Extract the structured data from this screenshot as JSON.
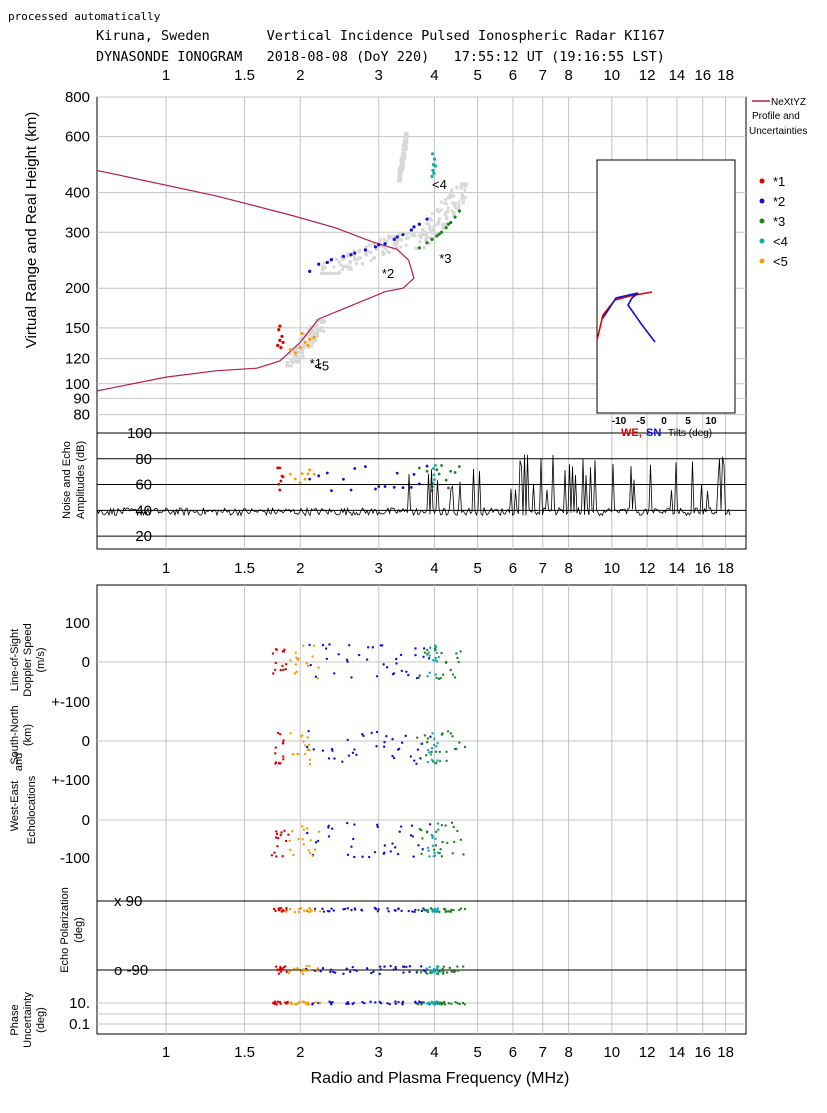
{
  "header": {
    "processed": "processed automatically",
    "line1": "Kiruna, Sweden       Vertical Incidence Pulsed Ionospheric Radar KI167",
    "line2": "DYNASONDE IONOGRAM   2018-08-08 (DoY 220)   17:55:12 UT (19:16:55 LST)"
  },
  "chart_data": [
    {
      "type": "scatter",
      "panel": "ionogram",
      "xlabel": "Radio and Plasma Frequency (MHz)",
      "ylabel": "Virtual Range and Real Height (km)",
      "x_scale": "log",
      "y_scale": "log",
      "xlim": [
        0.7,
        20
      ],
      "ylim": [
        70,
        800
      ],
      "x_ticks": [
        "1",
        "1.5",
        "2",
        "3",
        "4",
        "5",
        "6",
        "7",
        "8",
        "10",
        "12",
        "14",
        "16",
        "18"
      ],
      "y_ticks": [
        "800",
        "600",
        "400",
        "300",
        "200",
        "150",
        "120",
        "100",
        "90",
        "80"
      ],
      "grid": true,
      "legend": {
        "placement": "right",
        "profile_label": [
          "NeXtYZ",
          "Profile and",
          "Uncertainties"
        ],
        "profile_color": "#b0204a",
        "entries": [
          {
            "label": "*1",
            "color": "#e00000"
          },
          {
            "label": "*2",
            "color": "#1010d0"
          },
          {
            "label": "*3",
            "color": "#208020"
          },
          {
            "label": "<4",
            "color": "#10a8a8"
          },
          {
            "label": "<5",
            "color": "#f0a000"
          }
        ]
      },
      "annotations": [
        {
          "text": "*1",
          "x": 2.1,
          "y": 112
        },
        {
          "text": "<5",
          "x": 2.15,
          "y": 110
        },
        {
          "text": "*2",
          "x": 3.05,
          "y": 215
        },
        {
          "text": "*3",
          "x": 4.1,
          "y": 240
        },
        {
          "text": "<4",
          "x": 3.95,
          "y": 410
        }
      ],
      "profile": {
        "x": [
          0.7,
          1.0,
          1.3,
          1.6,
          1.8,
          2.0,
          2.2,
          2.7,
          3.1,
          3.4,
          3.6,
          3.5,
          3.3,
          2.9,
          2.4,
          1.9,
          1.3,
          0.7
        ],
        "y": [
          95,
          105,
          110,
          112,
          118,
          135,
          160,
          180,
          195,
          200,
          215,
          245,
          265,
          280,
          310,
          340,
          390,
          470
        ]
      },
      "series": [
        {
          "name": "*1",
          "color": "#e00000",
          "x": [
            1.78,
            1.8,
            1.82,
            1.79,
            1.83,
            1.81,
            1.8
          ],
          "y": [
            132,
            137,
            141,
            148,
            135,
            130,
            152
          ]
        },
        {
          "name": "*2",
          "color": "#1010d0",
          "x": [
            2.1,
            2.2,
            2.35,
            2.5,
            2.65,
            2.8,
            2.95,
            3.1,
            3.25,
            3.4,
            3.55,
            3.7,
            3.85,
            2.3,
            2.6,
            3.0,
            3.3,
            3.6
          ],
          "y": [
            226,
            238,
            246,
            252,
            258,
            264,
            270,
            276,
            285,
            295,
            305,
            318,
            330,
            241,
            255,
            274,
            290,
            312
          ]
        },
        {
          "name": "*3",
          "color": "#208020",
          "x": [
            3.7,
            3.85,
            3.95,
            4.05,
            4.15,
            4.25,
            4.35,
            4.45,
            4.55,
            4.1,
            4.3
          ],
          "y": [
            268,
            278,
            285,
            292,
            300,
            310,
            322,
            335,
            350,
            296,
            318
          ]
        },
        {
          "name": "<4",
          "color": "#10a8a8",
          "x": [
            3.95,
            3.97,
            3.98,
            4.0,
            3.96,
            4.02,
            3.99
          ],
          "y": [
            450,
            470,
            490,
            510,
            530,
            485,
            460
          ]
        },
        {
          "name": "<5",
          "color": "#f0a000",
          "x": [
            1.95,
            2.0,
            2.05,
            2.1,
            2.15,
            1.9,
            2.02,
            2.08
          ],
          "y": [
            125,
            130,
            135,
            138,
            140,
            128,
            144,
            132
          ]
        }
      ]
    },
    {
      "type": "line",
      "panel": "tilts",
      "label": "Tilts (deg)",
      "legend_we": "WE,",
      "legend_sn": "SN",
      "we_color": "#e00000",
      "sn_color": "#1010d0",
      "x_ticks": [
        "-10",
        "-5",
        "0",
        "5",
        "10"
      ]
    },
    {
      "type": "line",
      "panel": "amplitudes",
      "ylabel": [
        "Noise and Echo",
        "Amplitudes (dB)"
      ],
      "y_ticks": [
        "100",
        "80",
        "60",
        "40",
        "20"
      ],
      "ylim": [
        10,
        100
      ]
    },
    {
      "type": "scatter",
      "panel": "lower",
      "group_labels": {
        "doppler": [
          "Line-of-Sight",
          "Doppler Speed",
          "(m/s)"
        ],
        "south_north": "South-North",
        "km": "(km)",
        "west_east": "West-East",
        "and": "and",
        "echolocations": "Echolocations",
        "polarization": [
          "Echo Polarization",
          "(deg)"
        ],
        "phase": [
          "Phase",
          "Uncertainty",
          "(deg)"
        ]
      },
      "ticks": {
        "doppler": [
          "100",
          "0",
          "+-100"
        ],
        "south_north": [
          "0",
          "+-100"
        ],
        "west_east": [
          "0",
          "-100"
        ],
        "pol_x": "x  90",
        "pol_o": "o -90",
        "phase": [
          "10.",
          "0.1"
        ]
      }
    }
  ]
}
